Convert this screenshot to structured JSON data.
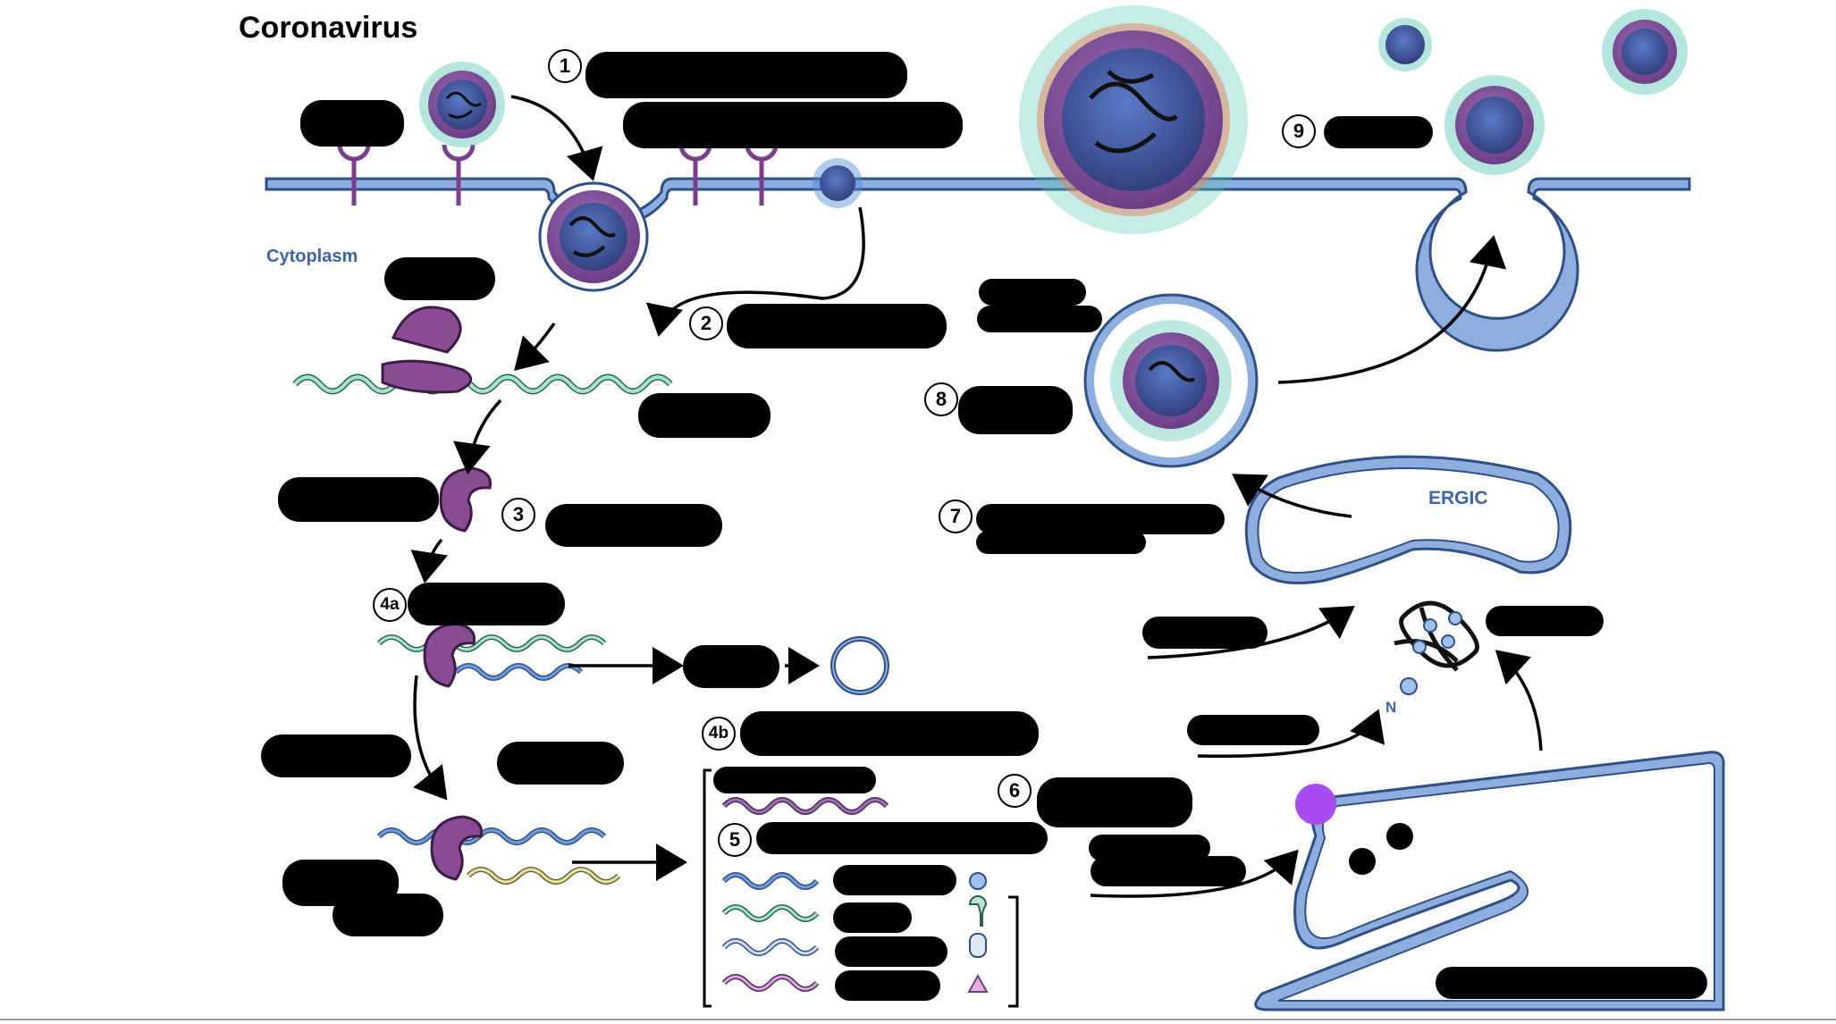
{
  "title": "Coronavirus",
  "compartments": {
    "cytoplasm": "Cytoplasm",
    "ergic": "ERGIC",
    "n_protein": "N"
  },
  "steps": [
    "1",
    "2",
    "3",
    "4a",
    "4b",
    "5",
    "6",
    "7",
    "8",
    "9"
  ],
  "colors": {
    "membrane_fill": "#8eaede",
    "membrane_stroke": "#2f4f87",
    "virus_core": "#3e4f9a",
    "virus_envelope": "#8a4d96",
    "spike": "#5ac8b4",
    "spike_alt": "#4f8fd0",
    "ribosome": "#8a4a94",
    "rna_green": "#a6e3c8",
    "rna_blue": "#6f9bd6",
    "rna_purple": "#9b6fb0",
    "rna_yellow": "#e6e2a6",
    "highlight_dot": "#a64cf0",
    "label_blue": "#3d63a8"
  }
}
